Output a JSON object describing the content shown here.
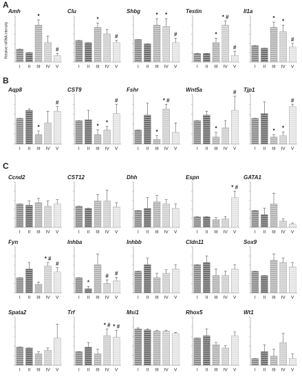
{
  "panel_labels": [
    "A",
    "B",
    "C"
  ],
  "bar_colors": [
    "#8c8c8c",
    "#6e6e6e",
    "#b4b4b4",
    "#cfcfcf",
    "#e4e4e4"
  ],
  "chart_data": [
    {
      "type": "bar",
      "title": "Amh",
      "y_label": "Relative mRNA intensity",
      "categories": [
        "I",
        "II",
        "III",
        "IV",
        "V"
      ],
      "values": [
        30,
        22,
        85,
        45,
        15
      ],
      "errors": [
        0,
        0,
        12,
        15,
        5
      ],
      "annotations": [
        null,
        null,
        "*",
        null,
        "#"
      ],
      "ylim": [
        0,
        100
      ]
    },
    {
      "type": "bar",
      "title": "Clu",
      "categories": [
        "I",
        "II",
        "III",
        "IV",
        "V"
      ],
      "values": [
        50,
        45,
        80,
        65,
        45
      ],
      "errors": [
        0,
        0,
        10,
        10,
        5
      ],
      "annotations": [
        null,
        null,
        "*",
        null,
        "#"
      ],
      "ylim": [
        0,
        100
      ]
    },
    {
      "type": "bar",
      "title": "Shbg",
      "categories": [
        "I",
        "II",
        "III",
        "IV",
        "V"
      ],
      "values": [
        52,
        42,
        85,
        82,
        45
      ],
      "errors": [
        0,
        0,
        15,
        18,
        10
      ],
      "annotations": [
        null,
        null,
        "*",
        "*",
        "#"
      ],
      "ylim": [
        0,
        100
      ]
    },
    {
      "type": "bar",
      "title": "Testin",
      "categories": [
        "I",
        "II",
        "III",
        "IV",
        "V"
      ],
      "values": [
        20,
        20,
        45,
        85,
        15
      ],
      "errors": [
        0,
        0,
        10,
        10,
        10
      ],
      "annotations": [
        null,
        null,
        "*",
        "* #",
        "#"
      ],
      "ylim": [
        0,
        100
      ]
    },
    {
      "type": "bar",
      "title": "Il1a",
      "categories": [
        "I",
        "II",
        "III",
        "IV",
        "V"
      ],
      "values": [
        38,
        32,
        80,
        70,
        35
      ],
      "errors": [
        0,
        0,
        12,
        15,
        8
      ],
      "annotations": [
        null,
        null,
        "*",
        "*",
        "#"
      ],
      "ylim": [
        0,
        100
      ]
    },
    {
      "type": "bar",
      "title": "Aqp8",
      "categories": [
        "I",
        "II",
        "III",
        "IV",
        "V"
      ],
      "values": [
        55,
        72,
        20,
        45,
        70
      ],
      "errors": [
        0,
        3,
        8,
        25,
        10
      ],
      "annotations": [
        null,
        null,
        "*",
        null,
        "#"
      ],
      "ylim": [
        0,
        100
      ]
    },
    {
      "type": "bar",
      "title": "CST9",
      "categories": [
        "I",
        "II",
        "III",
        "IV",
        "V"
      ],
      "values": [
        50,
        52,
        20,
        30,
        65
      ],
      "errors": [
        0,
        20,
        10,
        8,
        20
      ],
      "annotations": [
        null,
        null,
        "*",
        "*",
        "#"
      ],
      "ylim": [
        0,
        100
      ]
    },
    {
      "type": "bar",
      "title": "Fshr",
      "categories": [
        "I",
        "II",
        "III",
        "IV",
        "V"
      ],
      "values": [
        30,
        62,
        10,
        75,
        25
      ],
      "errors": [
        0,
        25,
        8,
        10,
        20
      ],
      "annotations": [
        null,
        null,
        "*",
        "* #",
        null
      ],
      "ylim": [
        0,
        100
      ]
    },
    {
      "type": "bar",
      "title": "Wnt5a",
      "categories": [
        "I",
        "II",
        "III",
        "IV",
        "V"
      ],
      "values": [
        50,
        62,
        15,
        35,
        72
      ],
      "errors": [
        0,
        8,
        10,
        15,
        30
      ],
      "annotations": [
        null,
        null,
        "*",
        null,
        "#"
      ],
      "ylim": [
        0,
        100
      ]
    },
    {
      "type": "bar",
      "title": "Tjp1",
      "categories": [
        "I",
        "II",
        "III",
        "IV",
        "V"
      ],
      "values": [
        55,
        65,
        15,
        18,
        80
      ],
      "errors": [
        0,
        25,
        5,
        8,
        5
      ],
      "annotations": [
        null,
        null,
        "*",
        "*",
        "#"
      ],
      "ylim": [
        0,
        100
      ]
    },
    {
      "type": "bar",
      "title": "Ccnd2",
      "categories": [
        "I",
        "II",
        "III",
        "IV",
        "V"
      ],
      "values": [
        55,
        52,
        58,
        50,
        55
      ],
      "errors": [
        0,
        10,
        10,
        12,
        10
      ],
      "ylim": [
        0,
        100
      ]
    },
    {
      "type": "bar",
      "title": "CST12",
      "categories": [
        "I",
        "II",
        "III",
        "IV",
        "V"
      ],
      "values": [
        50,
        45,
        62,
        62,
        48
      ],
      "errors": [
        0,
        0,
        15,
        25,
        10
      ],
      "ylim": [
        0,
        100
      ]
    },
    {
      "type": "bar",
      "title": "Dhh",
      "categories": [
        "I",
        "II",
        "III",
        "IV",
        "V"
      ],
      "values": [
        40,
        45,
        60,
        55,
        45
      ],
      "errors": [
        0,
        25,
        15,
        10,
        10
      ],
      "ylim": [
        0,
        100
      ]
    },
    {
      "type": "bar",
      "title": "Espn",
      "categories": [
        "I",
        "II",
        "III",
        "IV",
        "V"
      ],
      "values": [
        25,
        25,
        18,
        20,
        70
      ],
      "errors": [
        0,
        0,
        5,
        5,
        15
      ],
      "annotations": [
        null,
        null,
        null,
        null,
        "* #"
      ],
      "ylim": [
        0,
        100
      ]
    },
    {
      "type": "bar",
      "title": "GATA1",
      "categories": [
        "I",
        "II",
        "III",
        "IV",
        "V"
      ],
      "values": [
        40,
        30,
        55,
        15,
        8
      ],
      "errors": [
        0,
        15,
        25,
        5,
        2
      ],
      "ylim": [
        0,
        100
      ]
    },
    {
      "type": "bar",
      "title": "Fyn",
      "categories": [
        "I",
        "II",
        "III",
        "IV",
        "V"
      ],
      "values": [
        35,
        55,
        20,
        62,
        48
      ],
      "errors": [
        0,
        15,
        5,
        8,
        10
      ],
      "annotations": [
        null,
        null,
        null,
        "* #",
        "#"
      ],
      "ylim": [
        0,
        100
      ]
    },
    {
      "type": "bar",
      "title": "Inhba",
      "categories": [
        "I",
        "II",
        "III",
        "IV",
        "V"
      ],
      "values": [
        35,
        10,
        65,
        22,
        28
      ],
      "errors": [
        0,
        5,
        25,
        8,
        8
      ],
      "annotations": [
        null,
        "*",
        null,
        "#",
        "#"
      ],
      "ylim": [
        0,
        100
      ]
    },
    {
      "type": "bar",
      "title": "Inhbb",
      "categories": [
        "I",
        "II",
        "III",
        "IV",
        "V"
      ],
      "values": [
        50,
        65,
        35,
        45,
        55
      ],
      "errors": [
        0,
        15,
        10,
        8,
        10
      ],
      "ylim": [
        0,
        100
      ]
    },
    {
      "type": "bar",
      "title": "Cldn11",
      "categories": [
        "I",
        "II",
        "III",
        "IV",
        "V"
      ],
      "values": [
        65,
        70,
        40,
        40,
        55
      ],
      "errors": [
        0,
        15,
        15,
        10,
        10
      ],
      "ylim": [
        0,
        100
      ]
    },
    {
      "type": "bar",
      "title": "Sox9",
      "categories": [
        "I",
        "II",
        "III",
        "IV",
        "V"
      ],
      "values": [
        50,
        40,
        75,
        70,
        60
      ],
      "errors": [
        0,
        0,
        15,
        10,
        10
      ],
      "ylim": [
        0,
        100
      ]
    },
    {
      "type": "bar",
      "title": "Spata2",
      "categories": [
        "I",
        "II",
        "III",
        "IV",
        "V"
      ],
      "values": [
        40,
        38,
        25,
        33,
        60
      ],
      "errors": [
        0,
        0,
        5,
        5,
        30
      ],
      "ylim": [
        0,
        100
      ]
    },
    {
      "type": "bar",
      "title": "Trf",
      "categories": [
        "I",
        "II",
        "III",
        "IV",
        "V"
      ],
      "values": [
        30,
        40,
        25,
        65,
        62
      ],
      "errors": [
        0,
        10,
        10,
        15,
        15
      ],
      "annotations": [
        null,
        null,
        null,
        "* #",
        "* #"
      ],
      "ylim": [
        0,
        100
      ]
    },
    {
      "type": "bar",
      "title": "Msi1",
      "categories": [
        "I",
        "II",
        "III",
        "IV",
        "V"
      ],
      "values": [
        80,
        78,
        75,
        75,
        70
      ],
      "errors": [
        2,
        2,
        2,
        2,
        2
      ],
      "ylim": [
        0,
        100
      ]
    },
    {
      "type": "bar",
      "title": "Rhox5",
      "categories": [
        "I",
        "II",
        "III",
        "IV",
        "V"
      ],
      "values": [
        60,
        65,
        45,
        38,
        65
      ],
      "errors": [
        0,
        15,
        5,
        5,
        8
      ],
      "ylim": [
        0,
        100
      ]
    },
    {
      "type": "bar",
      "title": "Wt1",
      "categories": [
        "I",
        "II",
        "III",
        "IV",
        "V"
      ],
      "values": [
        15,
        30,
        20,
        50,
        15
      ],
      "errors": [
        0,
        15,
        15,
        20,
        10
      ],
      "ylim": [
        0,
        100
      ]
    }
  ]
}
